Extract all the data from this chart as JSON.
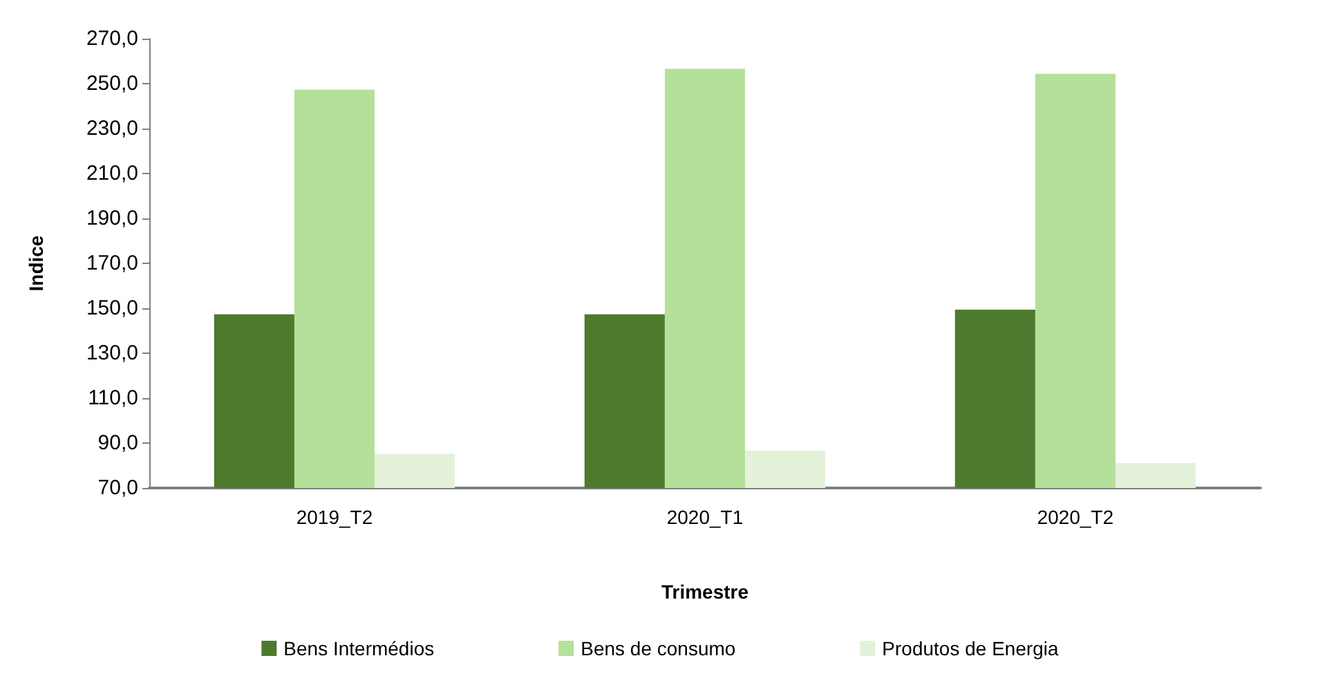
{
  "chart_data": {
    "type": "bar",
    "xlabel": "Trimestre",
    "ylabel": "Indice",
    "categories": [
      "2019_T2",
      "2020_T1",
      "2020_T2"
    ],
    "series": [
      {
        "name": "Bens Intermédios",
        "color": "#4e7a2e",
        "values": [
          147.3,
          147.3,
          149.4
        ]
      },
      {
        "name": "Bens de consumo",
        "color": "#b5e09a",
        "values": [
          247.3,
          256.6,
          254.4
        ]
      },
      {
        "name": "Produtos de Energia",
        "color": "#e4f2da",
        "values": [
          85.2,
          86.6,
          81.1
        ]
      }
    ],
    "ylim": [
      70,
      270
    ],
    "yticks": [
      {
        "value": 70,
        "label": "70,0"
      },
      {
        "value": 90,
        "label": "90,0"
      },
      {
        "value": 110,
        "label": "110,0"
      },
      {
        "value": 130,
        "label": "130,0"
      },
      {
        "value": 150,
        "label": "150,0"
      },
      {
        "value": 170,
        "label": "170,0"
      },
      {
        "value": 190,
        "label": "190,0"
      },
      {
        "value": 210,
        "label": "210,0"
      },
      {
        "value": 230,
        "label": "230,0"
      },
      {
        "value": 250,
        "label": "250,0"
      },
      {
        "value": 270,
        "label": "270,0"
      }
    ],
    "grid": false,
    "legend": "bottom"
  }
}
